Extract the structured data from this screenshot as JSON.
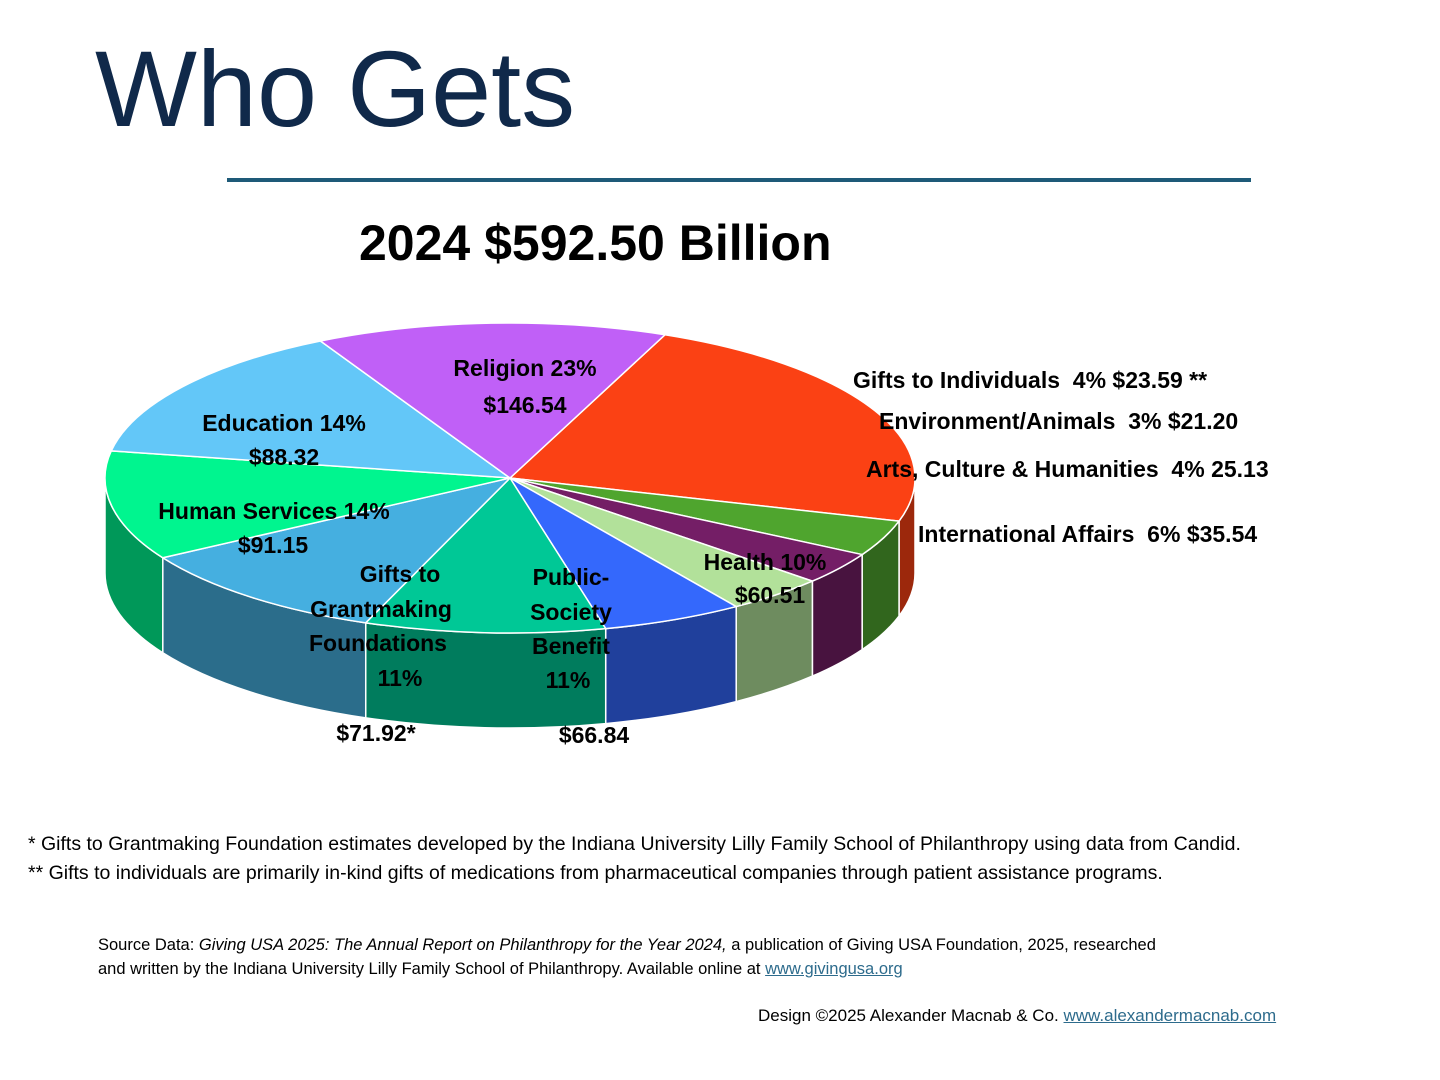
{
  "header": {
    "title": "Who Gets"
  },
  "chart_data": {
    "type": "pie",
    "title": "2024 $592.50 Billion",
    "unit": "$ Billion",
    "slices": [
      {
        "name": "Religion",
        "percent": 23,
        "value": 146.54,
        "label": "Religion 23%",
        "value_label": "$146.54",
        "color": "#fb4114"
      },
      {
        "name": "Gifts to Individuals",
        "percent": 4,
        "value": 23.59,
        "label": "Gifts to Individuals  4% $23.59 **",
        "color": "#4fa52e"
      },
      {
        "name": "Environment/Animals",
        "percent": 3,
        "value": 21.2,
        "label": "Environment/Animals  3% $21.20",
        "color": "#741e66"
      },
      {
        "name": "Arts, Culture & Humanities",
        "percent": 4,
        "value": 25.13,
        "label": "Arts, Culture & Humanities  4% 25.13",
        "color": "#b2e19a"
      },
      {
        "name": "International Affairs",
        "percent": 6,
        "value": 35.54,
        "label": "International Affairs  6% $35.54",
        "color": "#3468fc"
      },
      {
        "name": "Health",
        "percent": 10,
        "value": 60.51,
        "label": "Health 10%",
        "value_label": "$60.51",
        "color": "#00c896"
      },
      {
        "name": "Public-Society Benefit",
        "percent": 11,
        "value": 66.84,
        "label": "Public- Society Benefit 11%",
        "value_label": "$66.84",
        "color": "#45afe0"
      },
      {
        "name": "Gifts to Grantmaking Foundations",
        "percent": 11,
        "value": 71.92,
        "label": "Gifts to Grantmaking Foundations 11%",
        "value_label": "$71.92*",
        "color": "#00f58f"
      },
      {
        "name": "Human Services",
        "percent": 14,
        "value": 91.15,
        "label": "Human Services 14%",
        "value_label": "$91.15",
        "color": "#63c7f8"
      },
      {
        "name": "Education",
        "percent": 14,
        "value": 88.32,
        "label": "Education 14%",
        "value_label": "$88.32",
        "color": "#c060f7"
      }
    ]
  },
  "footnotes": [
    "*  Gifts to Grantmaking Foundation estimates developed by the Indiana University Lilly Family School of Philanthropy using data from Candid.",
    "** Gifts to individuals are primarily in-kind gifts of medications from pharmaceutical companies through patient assistance programs."
  ],
  "source": {
    "prefix": "Source Data: ",
    "publication": "Giving USA 2025: The Annual Report on Philanthropy for the Year 2024,",
    "rest_line1": " a publication of Giving USA Foundation, 2025, researched",
    "line2": "and written by the Indiana University Lilly Family School of Philanthropy. Available online at ",
    "link": "www.givingusa.org"
  },
  "credit": {
    "text": "Design ©2025 Alexander Macnab & Co.  ",
    "link": "www.alexandermacnab.com"
  }
}
